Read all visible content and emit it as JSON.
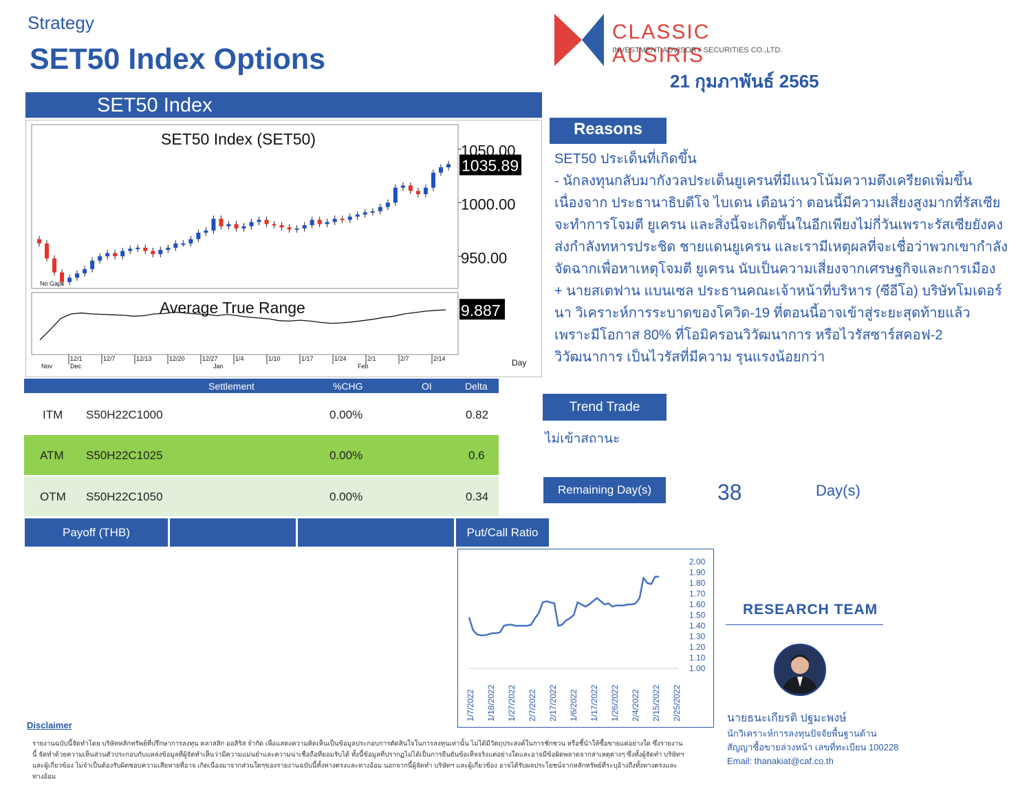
{
  "header": {
    "strategy": "Strategy",
    "title": "SET50 Index Options",
    "logo_name": "CLASSIC AUSIRIS",
    "logo_sub": "INVESTMENT ADVISORY SECURITIES CO.,LTD.",
    "date": "21 กุมภาพันธ์ 2565",
    "colors": {
      "brand_blue": "#2e5ca8",
      "logo_red": "#e0413a",
      "atm_green": "#92d050",
      "otm_green": "#e2efda"
    }
  },
  "set50": {
    "section_title": "SET50 Index",
    "chart_title": "SET50  Index  (SET50)",
    "last_price": "1035.89",
    "price_ticks": [
      "1050.00",
      "1000.00",
      "950.00"
    ],
    "no_gaps": "No Gaps",
    "atr_title": "Average  True  Range",
    "atr_value": "9.887",
    "date_ticks": [
      "12/1",
      "12/7",
      "12/13",
      "12/20",
      "12/27",
      "1/4",
      "1/10",
      "1/17",
      "1/24",
      "2/1",
      "2/7",
      "2/14"
    ],
    "month_ticks": [
      "Nov",
      "Dec",
      "Jan",
      "Feb"
    ],
    "axis_unit": "Day",
    "price_series": [
      962,
      948,
      935,
      926,
      930,
      934,
      938,
      946,
      950,
      953,
      950,
      955,
      957,
      958,
      955,
      952,
      956,
      958,
      962,
      962,
      966,
      972,
      974,
      985,
      978,
      980,
      976,
      978,
      982,
      984,
      980,
      979,
      977,
      975,
      976,
      979,
      984,
      980,
      982,
      985,
      984,
      987,
      989,
      991,
      992,
      996,
      1000,
      1014,
      1016,
      1011,
      1008,
      1014,
      1028,
      1033,
      1036
    ],
    "atr_series": [
      3.2,
      5.5,
      8.0,
      9.0,
      9.2,
      9.0,
      8.9,
      8.8,
      8.7,
      8.5,
      8.6,
      9.0,
      9.1,
      9.4,
      9.2,
      9.0,
      8.9,
      8.6,
      8.9,
      8.6,
      8.3,
      8.1,
      7.9,
      7.5,
      7.4,
      7.6,
      7.4,
      7.1,
      6.9,
      7.0,
      7.2,
      7.5,
      7.8,
      8.2,
      8.5,
      9.0,
      9.3,
      9.6,
      9.8,
      9.887
    ]
  },
  "reasons": {
    "title": "Reasons",
    "lines": [
      "SET50 ประเด็นที่เกิดขึ้น",
      "- นักลงทุนกลับมากังวลประเด็นยูเครนที่มีแนวโน้มความตึงเครียดเพิ่มขึ้น เนื่องจาก ประธานาธิบดีโจ ไบเดน เตือนว่า ตอนนี้มีความเสี่ยงสูงมากที่รัสเซียจะทำการโจมตี ยูเครน และสิ่งนี้จะเกิดขึ้นในอีกเพียงไม่กี่วันเพราะรัสเซียยังคงส่งกำลังทหารประชิด ชายแดนยูเครน และเรามีเหตุผลที่จะเชื่อว่าพวกเขากำลังจัดฉากเพื่อหาเหตุโจมตี ยูเครน นับเป็นความเสี่ยงจากเศรษฐกิจและการเมือง",
      "+ นายสเตฟาน แบนเซล ประธานคณะเจ้าหน้าที่บริหาร (ซีอีโอ) บริษัทโมเดอร์นา วิเคราะห์การระบาดของโควิด-19 ที่ตอนนี้อาจเข้าสู่ระยะสุดท้ายแล้ว เพราะมีโอกาส 80% ที่โอมิครอนวิวัฒนาการ หรือไวรัสซาร์สคอฟ-2 วิวัฒนาการ เป็นไวรัสที่มีความ รุนแรงน้อยกว่า"
    ]
  },
  "options": {
    "headers": {
      "settlement": "Settlement",
      "chg": "%CHG",
      "oi": "OI",
      "delta": "Delta"
    },
    "rows": [
      {
        "label": "ITM",
        "series": "S50H22C1000",
        "chg": "0.00%",
        "delta": "0.82"
      },
      {
        "label": "ATM",
        "series": "S50H22C1025",
        "chg": "0.00%",
        "delta": "0.6"
      },
      {
        "label": "OTM",
        "series": "S50H22C1050",
        "chg": "0.00%",
        "delta": "0.34"
      }
    ]
  },
  "trend": {
    "button": "Trend Trade",
    "value": "ไม่เข้าสถานะ"
  },
  "remaining": {
    "button": "Remaining Day(s)",
    "value": "38",
    "unit": "Day(s)"
  },
  "payoff": {
    "label": "Payoff (THB)",
    "pcr_label": "Put/Call Ratio"
  },
  "chart_data": {
    "type": "line",
    "title": "",
    "x_ticks": [
      "1/7/2022",
      "1/18/2022",
      "1/27/2022",
      "2/7/2022",
      "2/17/2022",
      "1/6/2022",
      "1/17/2022",
      "1/26/2022",
      "2/4/2022",
      "2/15/2022",
      "2/25/2022"
    ],
    "y_ticks": [
      "2.00",
      "1.90",
      "1.80",
      "1.70",
      "1.60",
      "1.50",
      "1.40",
      "1.30",
      "1.20",
      "1.10",
      "1.00"
    ],
    "ylim": [
      1.0,
      2.0
    ],
    "grid": false,
    "series": [
      {
        "values": [
          1.48,
          1.36,
          1.32,
          1.31,
          1.31,
          1.32,
          1.33,
          1.33,
          1.34,
          1.4,
          1.41,
          1.41,
          1.4,
          1.4,
          1.4,
          1.4,
          1.41,
          1.47,
          1.52,
          1.62,
          1.63,
          1.62,
          1.61,
          1.4,
          1.41,
          1.45,
          1.47,
          1.5,
          1.62,
          1.6,
          1.58,
          1.6,
          1.63,
          1.66,
          1.63,
          1.6,
          1.61,
          1.58,
          1.59,
          1.59,
          1.59,
          1.6,
          1.6,
          1.61,
          1.66,
          1.85,
          1.8,
          1.79,
          1.86,
          1.86
        ]
      }
    ]
  },
  "team": {
    "title": "RESEARCH TEAM",
    "name": "นายธนะเกียรติ ปฐมะพงษ์",
    "role": "นักวิเคราะห์การลงทุนปัจจัยพื้นฐานด้าน",
    "license": "สัญญาซื้อขายล่วงหน้า เลขที่ทะเบียน 100228",
    "email": "Email: thanakiat@caf.co.th"
  },
  "disclaimer": {
    "label": "Disclaimer",
    "text": "รายงานฉบับนี้จัดทำโดย บริษัทหลักทรัพย์ที่ปรึกษาการลงทุน คลาสสิก ออสิริส จำกัด เพื่อแสดงความคิดเห็นเป็นข้อมูลประกอบการตัดสินใจในการลงทุนเท่านั้น ไม่ได้มีวัตถุประสงค์ในการชักชวน หรือชี้นำให้ซื้อขายแต่อย่างใด ซึ่งรายงานนี้ จัดทำด้วยความเห็นส่วนตัวประกอบกับแหล่งข้อมูลที่ผู้จัดทำเห็นว่ามีความแม่นยำและความน่าเชื่อถือที่ยอมรับได้ ทั้งนี้ข้อมูลที่ปรากฏไม่ได้เป็นการยืนยันข้อเท็จจริงแต่อย่างใดและอาจมีข้อผิดพลาดจากสาเหตุต่างๆ ซึ่งทั้งผู้จัดทำ บริษัทฯ และผู้เกี่ยวข้อง ไม่จำเป็นต้องรับผิดชอบความเสียหายที่อาจ เกิดเนื่องมาจากส่วนใดๆของรายงานฉบับนี้ทั้งทางตรงและทางอ้อม นอกจากนี้ผู้จัดทำ บริษัทฯ และผู้เกี่ยวข้อง อาจได้รับผลประโยชน์จากหลักทรัพย์ที่ระบุอ้างถึงทั้งทางตรงและทางอ้อม"
  }
}
